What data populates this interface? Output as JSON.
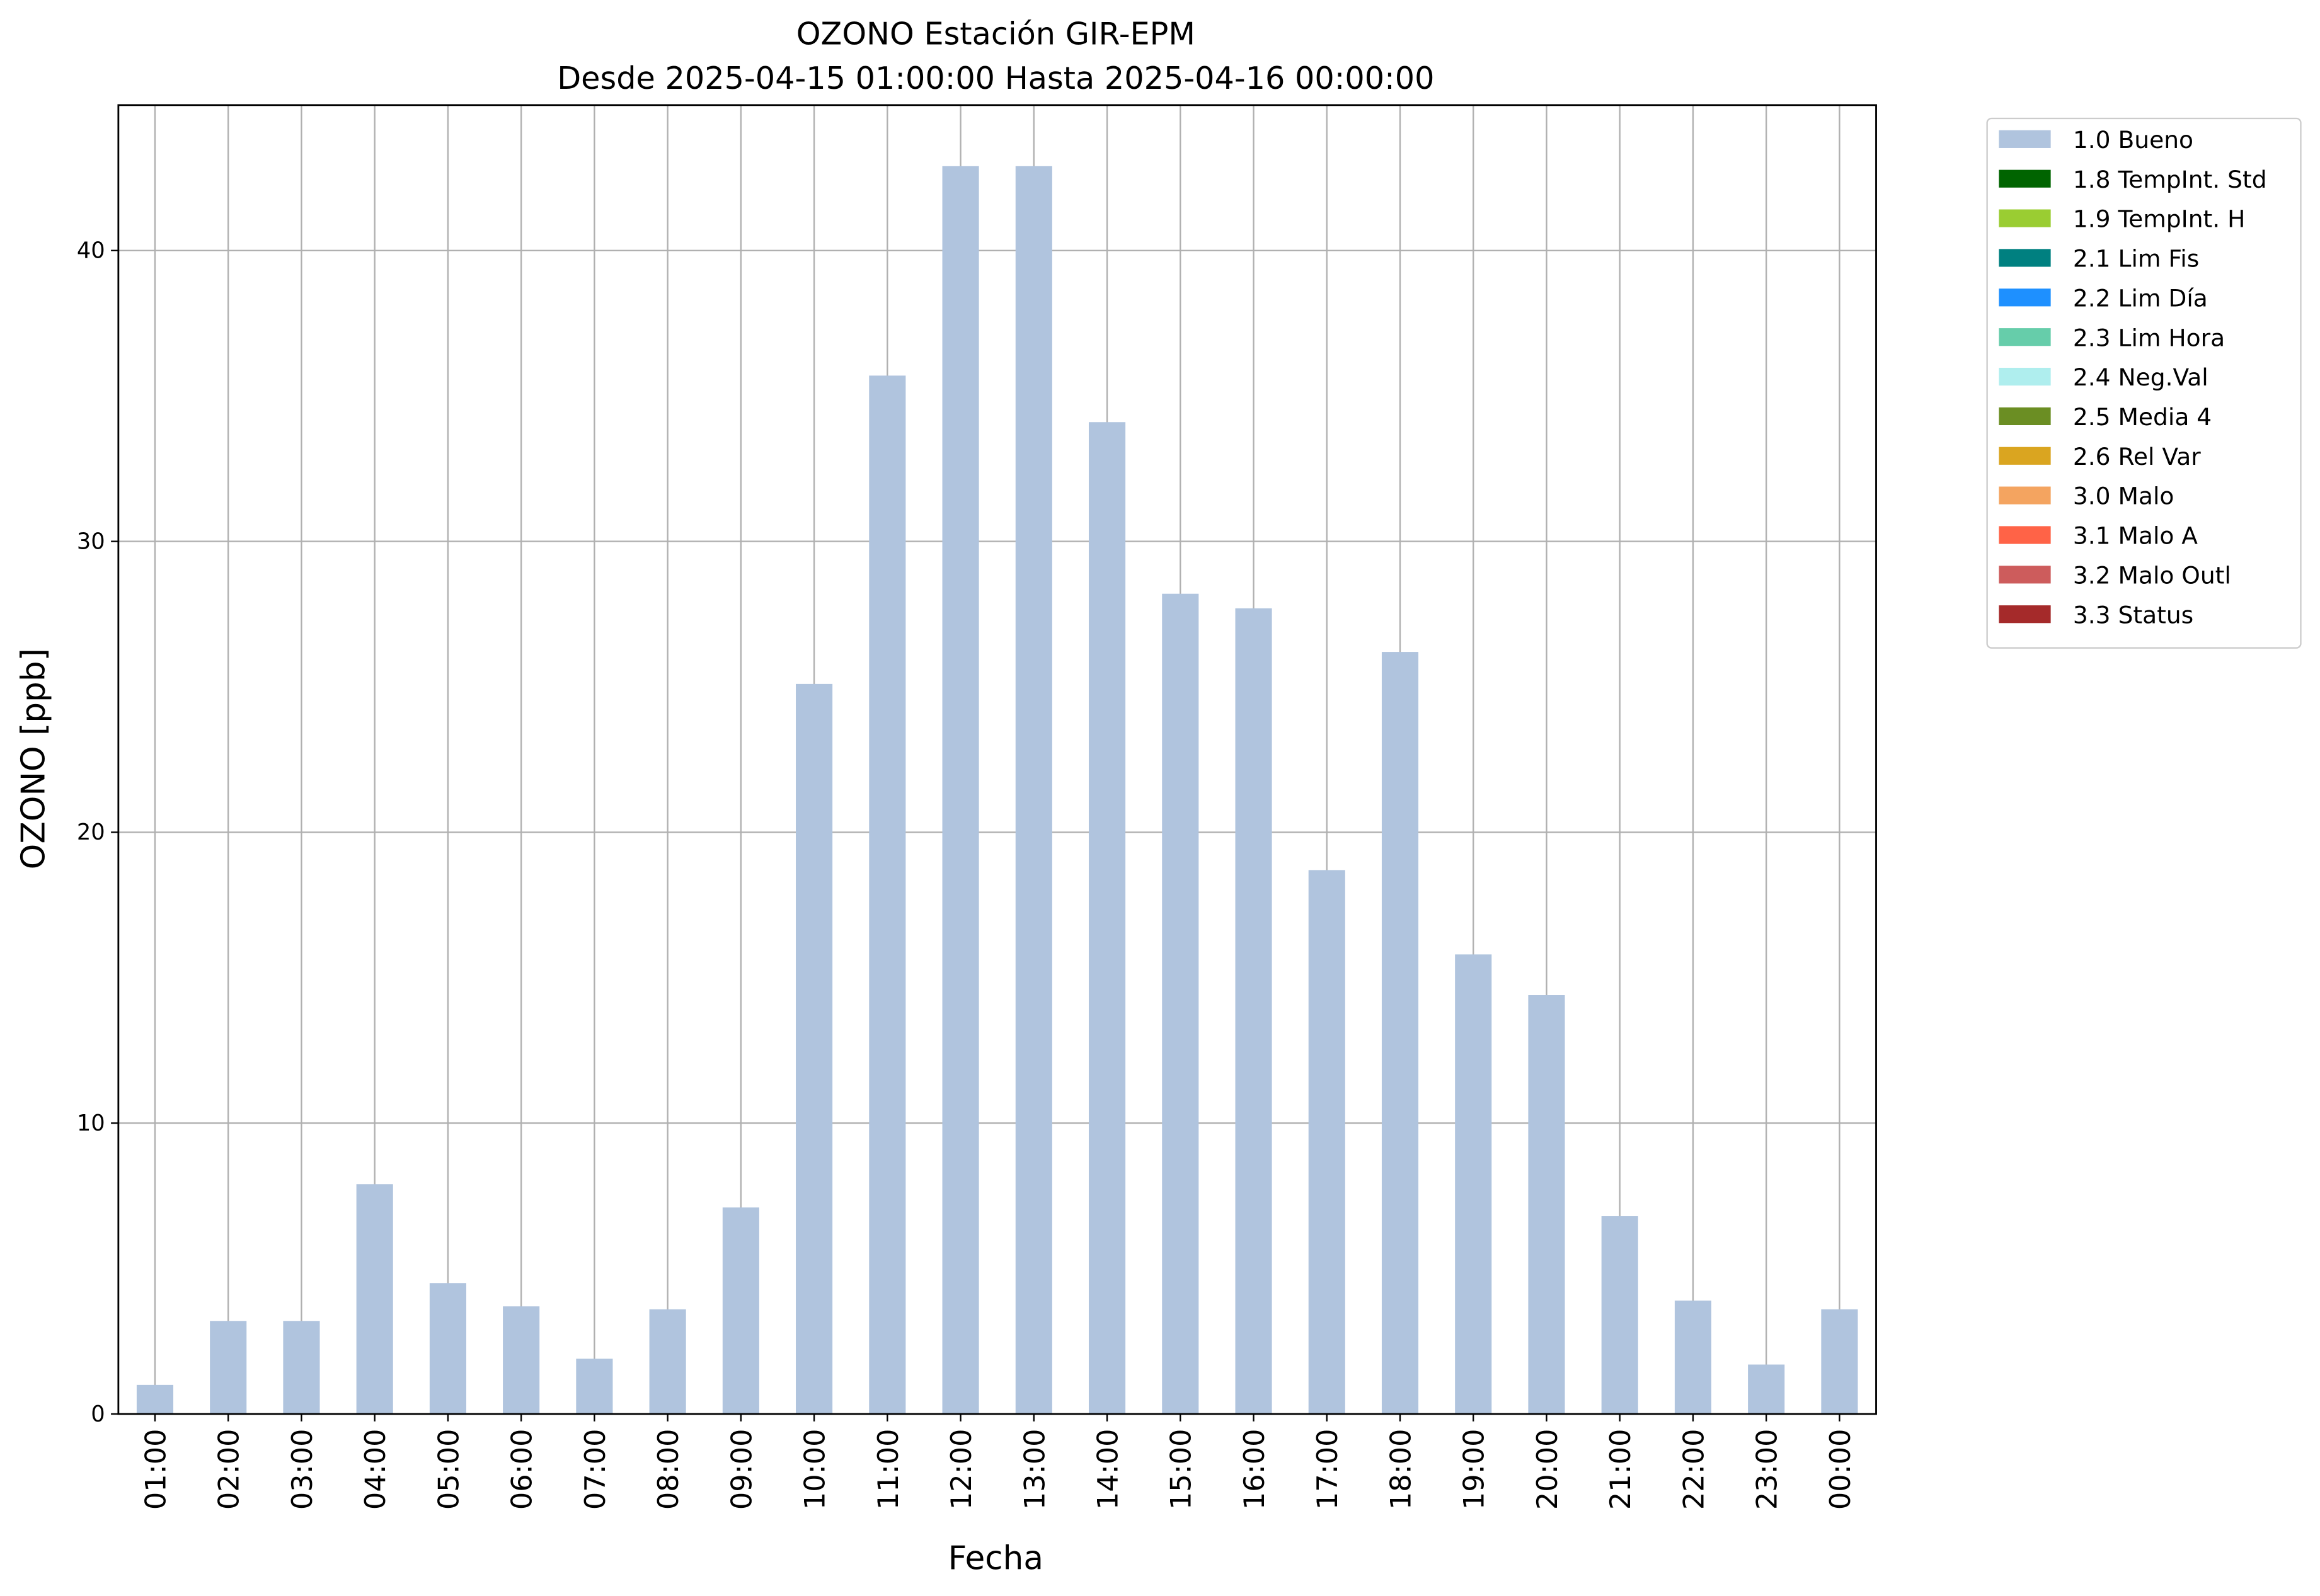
{
  "chart_data": {
    "type": "bar",
    "stacked": true,
    "title": "OZONO Estación GIR-EPM",
    "subtitle": "Desde 2025-04-15 01:00:00 Hasta 2025-04-16 00:00:00",
    "x_label": "Fecha",
    "y_label": "OZONO [ppb]",
    "categories": [
      "01:00",
      "02:00",
      "03:00",
      "04:00",
      "05:00",
      "06:00",
      "07:00",
      "08:00",
      "09:00",
      "10:00",
      "11:00",
      "12:00",
      "13:00",
      "14:00",
      "15:00",
      "16:00",
      "17:00",
      "18:00",
      "19:00",
      "20:00",
      "21:00",
      "22:00",
      "23:00",
      "00:00"
    ],
    "series": [
      {
        "name": "1.0 Bueno",
        "color": "#b0c4de",
        "values": [
          1.0,
          3.2,
          3.2,
          7.9,
          4.5,
          3.7,
          1.9,
          3.6,
          7.1,
          25.1,
          35.7,
          42.9,
          42.9,
          34.1,
          28.2,
          27.7,
          18.7,
          26.2,
          15.8,
          14.4,
          6.8,
          3.9,
          1.7,
          3.6
        ]
      },
      {
        "name": "1.8 TempInt. Std",
        "color": "#006400",
        "values": [
          null,
          null,
          null,
          null,
          null,
          null,
          null,
          null,
          null,
          null,
          null,
          null,
          null,
          null,
          null,
          null,
          null,
          null,
          null,
          null,
          null,
          null,
          null,
          null
        ]
      },
      {
        "name": "1.9 TempInt. H",
        "color": "#9acd32",
        "values": [
          null,
          null,
          null,
          null,
          null,
          null,
          null,
          null,
          null,
          null,
          null,
          null,
          null,
          null,
          null,
          null,
          null,
          null,
          null,
          null,
          null,
          null,
          null,
          null
        ]
      },
      {
        "name": "2.1 Lim Fis",
        "color": "#008080",
        "values": [
          null,
          null,
          null,
          null,
          null,
          null,
          null,
          null,
          null,
          null,
          null,
          null,
          null,
          null,
          null,
          null,
          null,
          null,
          null,
          null,
          null,
          null,
          null,
          null
        ]
      },
      {
        "name": "2.2 Lim Día",
        "color": "#1e90ff",
        "values": [
          null,
          null,
          null,
          null,
          null,
          null,
          null,
          null,
          null,
          null,
          null,
          null,
          null,
          null,
          null,
          null,
          null,
          null,
          null,
          null,
          null,
          null,
          null,
          null
        ]
      },
      {
        "name": "2.3 Lim Hora",
        "color": "#66cdaa",
        "values": [
          null,
          null,
          null,
          null,
          null,
          null,
          null,
          null,
          null,
          null,
          null,
          null,
          null,
          null,
          null,
          null,
          null,
          null,
          null,
          null,
          null,
          null,
          null,
          null
        ]
      },
      {
        "name": "2.4 Neg.Val",
        "color": "#afeeee",
        "values": [
          null,
          null,
          null,
          null,
          null,
          null,
          null,
          null,
          null,
          null,
          null,
          null,
          null,
          null,
          null,
          null,
          null,
          null,
          null,
          null,
          null,
          null,
          null,
          null
        ]
      },
      {
        "name": "2.5 Media 4",
        "color": "#6b8e23",
        "values": [
          null,
          null,
          null,
          null,
          null,
          null,
          null,
          null,
          null,
          null,
          null,
          null,
          null,
          null,
          null,
          null,
          null,
          null,
          null,
          null,
          null,
          null,
          null,
          null
        ]
      },
      {
        "name": "2.6 Rel Var",
        "color": "#daa520",
        "values": [
          null,
          null,
          null,
          null,
          null,
          null,
          null,
          null,
          null,
          null,
          null,
          null,
          null,
          null,
          null,
          null,
          null,
          null,
          null,
          null,
          null,
          null,
          null,
          null
        ]
      },
      {
        "name": "3.0 Malo",
        "color": "#f4a460",
        "values": [
          null,
          null,
          null,
          null,
          null,
          null,
          null,
          null,
          null,
          null,
          null,
          null,
          null,
          null,
          null,
          null,
          null,
          null,
          null,
          null,
          null,
          null,
          null,
          null
        ]
      },
      {
        "name": "3.1 Malo A",
        "color": "#ff6347",
        "values": [
          null,
          null,
          null,
          null,
          null,
          null,
          null,
          null,
          null,
          null,
          null,
          null,
          null,
          null,
          null,
          null,
          null,
          null,
          null,
          null,
          null,
          null,
          null,
          null
        ]
      },
      {
        "name": "3.2 Malo Outl",
        "color": "#cd5c5c",
        "values": [
          null,
          null,
          null,
          null,
          null,
          null,
          null,
          null,
          null,
          null,
          null,
          null,
          null,
          null,
          null,
          null,
          null,
          null,
          null,
          null,
          null,
          null,
          null,
          null
        ]
      },
      {
        "name": "3.3 Status",
        "color": "#a52a2a",
        "values": [
          null,
          null,
          null,
          null,
          null,
          null,
          null,
          null,
          null,
          null,
          null,
          null,
          null,
          null,
          null,
          null,
          null,
          null,
          null,
          null,
          null,
          null,
          null,
          null
        ]
      }
    ],
    "ylim": [
      0,
      45
    ],
    "yticks": [
      0,
      10,
      20,
      30,
      40
    ],
    "grid": true,
    "legend": "outside-right"
  }
}
